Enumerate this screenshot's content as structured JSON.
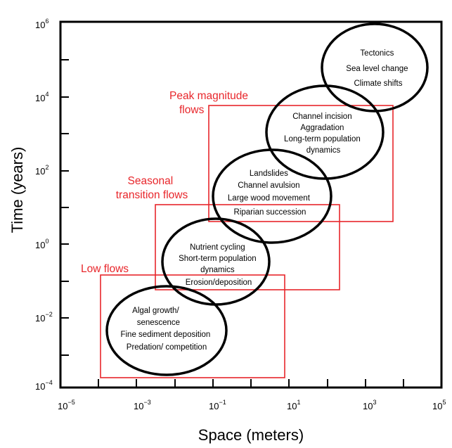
{
  "axes": {
    "x_title": "Space (meters)",
    "y_title": "Time (years)",
    "x_ticks": [
      {
        "base": "10",
        "exp": "−5"
      },
      {
        "base": "10",
        "exp": "−3"
      },
      {
        "base": "10",
        "exp": "−1"
      },
      {
        "base": "10",
        "exp": "1"
      },
      {
        "base": "10",
        "exp": "3"
      },
      {
        "base": "10",
        "exp": "5"
      }
    ],
    "y_ticks": [
      {
        "base": "10",
        "exp": "6"
      },
      {
        "base": "10",
        "exp": "4"
      },
      {
        "base": "10",
        "exp": "2"
      },
      {
        "base": "10",
        "exp": "0"
      },
      {
        "base": "10",
        "exp": "−2"
      },
      {
        "base": "10",
        "exp": "−4"
      }
    ]
  },
  "regions": {
    "low": {
      "label": "Low flows"
    },
    "seasonal": {
      "label_line1": "Seasonal",
      "label_line2": "transition flows"
    },
    "peak": {
      "label_line1": "Peak magnitude",
      "label_line2": "flows"
    }
  },
  "processes": {
    "tectonics": [
      "Tectonics",
      "Sea level change",
      "Climate shifts"
    ],
    "channel": [
      "Channel incision",
      "Aggradation",
      "Long-term population",
      "dynamics"
    ],
    "landslides": [
      "Landslides",
      "Channel avulsion",
      "Large wood movement",
      "Riparian succession"
    ],
    "nutrient": [
      "Nutrient cycling",
      "Short-term population",
      "dynamics",
      "Erosion/deposition"
    ],
    "algal": [
      "Algal growth/",
      "senescence",
      "Fine sediment deposition",
      "Predation/ competition"
    ]
  },
  "colors": {
    "flow_box": "#e8262b",
    "ellipse": "#000000"
  }
}
